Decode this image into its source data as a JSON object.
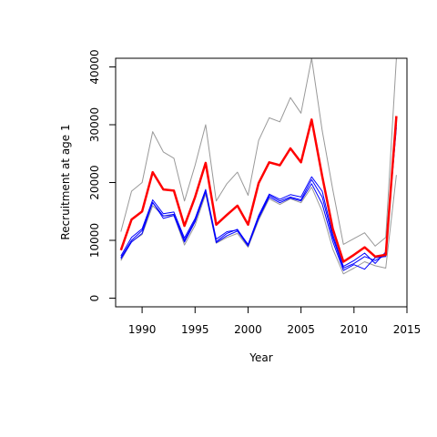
{
  "chart_data": {
    "type": "line",
    "title": "",
    "xlabel": "Year",
    "ylabel": "Recruitment at age 1",
    "xlim": [
      1987.5,
      2015
    ],
    "ylim": [
      -1500,
      41500
    ],
    "x_ticks": [
      1990,
      1995,
      2000,
      2005,
      2010,
      2015
    ],
    "y_ticks": [
      0,
      10000,
      20000,
      30000,
      40000
    ],
    "grid": false,
    "legend": "none",
    "x": [
      1988,
      1989,
      1990,
      1991,
      1992,
      1993,
      1994,
      1995,
      1996,
      1997,
      1998,
      1999,
      2000,
      2001,
      2002,
      2003,
      2004,
      2005,
      2006,
      2007,
      2008,
      2009,
      2010,
      2011,
      2012,
      2013,
      2014
    ],
    "series": [
      {
        "role": "upper-bound",
        "color": "#999999",
        "width": 1,
        "values": [
          11500,
          18500,
          20000,
          28800,
          25300,
          24200,
          16800,
          23000,
          30000,
          16800,
          19800,
          21800,
          17800,
          27300,
          31200,
          30500,
          34700,
          32000,
          41500,
          29000,
          18800,
          9300,
          10300,
          11300,
          9000,
          10500,
          41500
        ]
      },
      {
        "role": "lower-bound",
        "color": "#999999",
        "width": 1,
        "values": [
          6500,
          9800,
          11000,
          16000,
          14200,
          14300,
          9200,
          12600,
          18000,
          9500,
          10500,
          11200,
          8800,
          13500,
          17200,
          16200,
          17200,
          16500,
          19200,
          15000,
          8500,
          4200,
          5200,
          6300,
          5600,
          5200,
          21300
        ]
      },
      {
        "role": "replicate",
        "color": "#0000ff",
        "width": 1,
        "values": [
          7300,
          10500,
          12000,
          17000,
          14600,
          14900,
          10400,
          13800,
          18800,
          10200,
          11500,
          11800,
          9300,
          14300,
          18000,
          17100,
          17900,
          17500,
          21000,
          18500,
          11000,
          5500,
          6500,
          7800,
          6000,
          8000,
          29500
        ]
      },
      {
        "role": "replicate",
        "color": "#0000ff",
        "width": 1,
        "values": [
          7000,
          10000,
          11700,
          16500,
          14200,
          14500,
          10000,
          13500,
          18500,
          9800,
          11200,
          11900,
          9200,
          14000,
          17800,
          16800,
          17500,
          17000,
          20500,
          17500,
          10500,
          5200,
          6000,
          7200,
          6500,
          7500,
          30000
        ]
      },
      {
        "role": "replicate",
        "color": "#0000ff",
        "width": 1,
        "values": [
          6800,
          9700,
          11200,
          16600,
          13800,
          14300,
          9700,
          13200,
          18400,
          9600,
          10800,
          11600,
          9000,
          13800,
          17500,
          16500,
          17300,
          16800,
          19800,
          16300,
          9800,
          4800,
          5800,
          5000,
          7000,
          7200,
          30500
        ]
      },
      {
        "role": "central",
        "color": "#ff0000",
        "width": 2.5,
        "values": [
          8300,
          13600,
          15000,
          21800,
          18800,
          18600,
          12500,
          17500,
          23400,
          12700,
          14400,
          16000,
          12700,
          19900,
          23500,
          23000,
          25900,
          23500,
          30900,
          21100,
          12000,
          6300,
          7500,
          8800,
          7200,
          7500,
          31500
        ]
      }
    ]
  }
}
